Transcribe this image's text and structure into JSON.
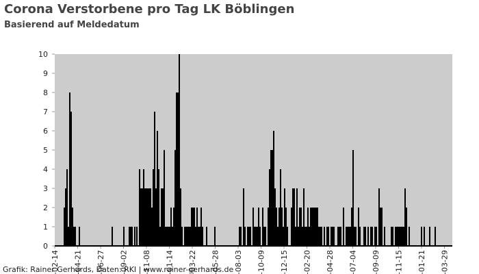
{
  "chart_data": {
    "type": "bar",
    "title": "Corona Verstorbene pro Tag LK Böblingen",
    "subtitle": "Basierend auf Meldedatum",
    "footer": "Grafik: Rainer Gerhards, Daten: RKI | www.rainer-gerhards.de",
    "color": "#000000",
    "background": "#cccccc",
    "x": [
      28,
      32,
      36,
      40,
      44,
      48,
      52,
      56,
      60,
      72,
      168,
      202,
      218,
      222,
      226,
      234,
      240,
      248,
      252,
      256,
      260,
      264,
      268,
      272,
      276,
      280,
      284,
      288,
      292,
      296,
      300,
      304,
      308,
      312,
      316,
      320,
      324,
      328,
      332,
      336,
      340,
      344,
      348,
      352,
      356,
      360,
      364,
      368,
      372,
      380,
      384,
      388,
      392,
      396,
      400,
      404,
      408,
      412,
      416,
      420,
      424,
      428,
      432,
      444,
      468,
      540,
      544,
      552,
      556,
      564,
      568,
      572,
      580,
      584,
      588,
      592,
      596,
      600,
      608,
      612,
      616,
      624,
      628,
      632,
      636,
      640,
      644,
      648,
      652,
      656,
      660,
      664,
      668,
      672,
      676,
      680,
      692,
      696,
      700,
      704,
      708,
      712,
      716,
      720,
      724,
      728,
      732,
      736,
      740,
      744,
      748,
      752,
      756,
      760,
      764,
      768,
      772,
      776,
      780,
      788,
      796,
      800,
      808,
      812,
      816,
      828,
      832,
      836,
      844,
      852,
      856,
      860,
      864,
      868,
      872,
      876,
      880,
      888,
      892,
      904,
      908,
      916,
      924,
      928,
      936,
      940,
      948,
      952,
      956,
      964,
      984,
      988,
      996,
      1000,
      1004,
      1008,
      1012,
      1016,
      1020,
      1024,
      1028,
      1036,
      1072,
      1080,
      1096,
      1112
    ],
    "values": [
      2,
      3,
      4,
      1,
      8,
      7,
      2,
      1,
      1,
      1,
      1,
      1,
      1,
      1,
      1,
      1,
      1,
      4,
      3,
      3,
      4,
      3,
      3,
      3,
      3,
      3,
      2,
      4,
      7,
      3,
      6,
      4,
      1,
      3,
      3,
      5,
      1,
      1,
      1,
      1,
      2,
      1,
      2,
      5,
      8,
      8,
      10,
      3,
      1,
      1,
      1,
      1,
      1,
      1,
      2,
      2,
      2,
      1,
      2,
      1,
      1,
      2,
      1,
      1,
      1,
      1,
      1,
      3,
      1,
      1,
      1,
      1,
      2,
      1,
      1,
      1,
      2,
      1,
      2,
      1,
      1,
      2,
      4,
      5,
      5,
      6,
      3,
      2,
      1,
      2,
      4,
      2,
      1,
      3,
      2,
      1,
      2,
      3,
      3,
      1,
      3,
      1,
      2,
      2,
      1,
      3,
      1,
      1,
      2,
      1,
      2,
      2,
      2,
      2,
      2,
      2,
      1,
      1,
      1,
      1,
      1,
      1,
      1,
      1,
      1,
      1,
      1,
      1,
      2,
      1,
      1,
      1,
      1,
      2,
      5,
      1,
      1,
      2,
      1,
      1,
      1,
      1,
      1,
      1,
      1,
      1,
      3,
      2,
      2,
      1,
      1,
      1,
      1,
      1,
      1,
      1,
      1,
      1,
      1,
      3,
      2,
      1,
      1,
      1,
      1,
      1
    ],
    "xlim": [
      0,
      1160
    ],
    "xticks": [
      {
        "value": 0,
        "label": "-02-14"
      },
      {
        "value": 67,
        "label": "-04-21"
      },
      {
        "value": 134,
        "label": "-06-27"
      },
      {
        "value": 201,
        "label": "-09-02"
      },
      {
        "value": 268,
        "label": "-11-08"
      },
      {
        "value": 335,
        "label": "-01-14"
      },
      {
        "value": 402,
        "label": "-03-22"
      },
      {
        "value": 469,
        "label": "-05-28"
      },
      {
        "value": 536,
        "label": "-08-03"
      },
      {
        "value": 603,
        "label": "-10-09"
      },
      {
        "value": 670,
        "label": "-12-15"
      },
      {
        "value": 737,
        "label": "-02-20"
      },
      {
        "value": 804,
        "label": "-04-28"
      },
      {
        "value": 871,
        "label": "-07-04"
      },
      {
        "value": 938,
        "label": "-09-09"
      },
      {
        "value": 1005,
        "label": "-11-15"
      },
      {
        "value": 1072,
        "label": "-01-21"
      },
      {
        "value": 1139,
        "label": "-03-29"
      }
    ],
    "ylim": [
      0,
      10
    ],
    "yticks": [
      0,
      1,
      2,
      3,
      4,
      5,
      6,
      7,
      8,
      9,
      10
    ]
  }
}
